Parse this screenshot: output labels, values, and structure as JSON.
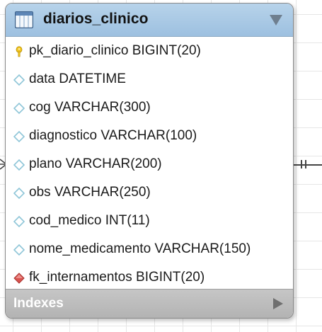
{
  "table": {
    "name": "diarios_clinico",
    "columns": [
      {
        "label": "pk_diario_clinico BIGINT(20)",
        "kind": "primary-key",
        "icon": "key-icon"
      },
      {
        "label": "data DATETIME",
        "kind": "column",
        "icon": "diamond-icon"
      },
      {
        "label": "cog VARCHAR(300)",
        "kind": "column",
        "icon": "diamond-icon"
      },
      {
        "label": "diagnostico VARCHAR(100)",
        "kind": "column",
        "icon": "diamond-icon"
      },
      {
        "label": "plano VARCHAR(200)",
        "kind": "column",
        "icon": "diamond-icon"
      },
      {
        "label": "obs VARCHAR(250)",
        "kind": "column",
        "icon": "diamond-icon"
      },
      {
        "label": "cod_medico INT(11)",
        "kind": "column",
        "icon": "diamond-icon"
      },
      {
        "label": "nome_medicamento VARCHAR(150)",
        "kind": "column",
        "icon": "diamond-icon"
      },
      {
        "label": "fk_internamentos BIGINT(20)",
        "kind": "foreign-key",
        "icon": "red-diamond-icon"
      }
    ],
    "indexes_label": "Indexes"
  },
  "colors": {
    "header_blue": "#a9c9e6",
    "column_diamond": "#a9d7e6",
    "fk_diamond": "#d9534f",
    "key": "#f0c419"
  }
}
